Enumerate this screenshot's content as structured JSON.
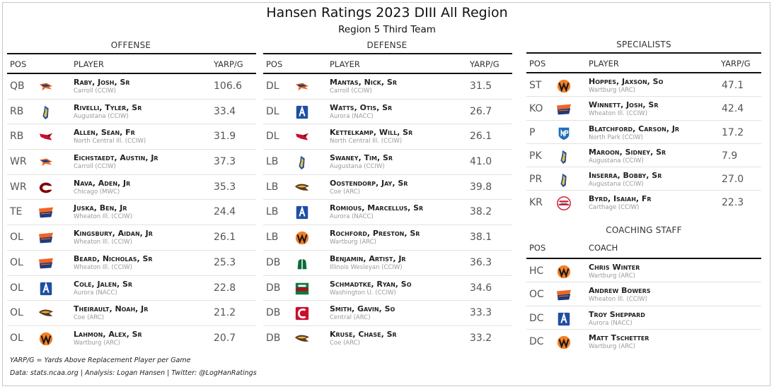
{
  "title": "Hansen Ratings 2023 DIII All Region",
  "subtitle": "Region 5 Third Team",
  "offense": {
    "title": "OFFENSE",
    "headers": {
      "pos": "POS",
      "player": "PLAYER",
      "stat": "YARP/G"
    },
    "rows": [
      {
        "pos": "QB",
        "player": "Raby, Josh, Sr",
        "team": "Carroll (CCIW)",
        "value": "106.6",
        "logo": "carroll-pioneers-logo"
      },
      {
        "pos": "RB",
        "player": "Rivelli, Tyler, Sr",
        "team": "Augustana (CCIW)",
        "value": "33.4",
        "logo": "augustana-vikings-logo"
      },
      {
        "pos": "RB",
        "player": "Allen, Sean, Fr",
        "team": "North Central Ill. (CCIW)",
        "value": "31.9",
        "logo": "north-central-cardinals-logo"
      },
      {
        "pos": "WR",
        "player": "Eichstaedt, Austin, Jr",
        "team": "Carroll (CCIW)",
        "value": "37.3",
        "logo": "carroll-pioneers-logo"
      },
      {
        "pos": "WR",
        "player": "Nava, Aden, Jr",
        "team": "Chicago (MWC)",
        "value": "35.3",
        "logo": "chicago-maroons-logo"
      },
      {
        "pos": "TE",
        "player": "Juska, Ben, Jr",
        "team": "Wheaton Ill. (CCIW)",
        "value": "24.4",
        "logo": "wheaton-thunder-logo"
      },
      {
        "pos": "OL",
        "player": "Kingsbury, Aidan, Jr",
        "team": "Wheaton Ill. (CCIW)",
        "value": "26.1",
        "logo": "wheaton-thunder-logo"
      },
      {
        "pos": "OL",
        "player": "Beard, Nicholas, Sr",
        "team": "Wheaton Ill. (CCIW)",
        "value": "25.3",
        "logo": "wheaton-thunder-logo"
      },
      {
        "pos": "OL",
        "player": "Cole, Jalen, Sr",
        "team": "Aurora (NACC)",
        "value": "22.8",
        "logo": "aurora-spartans-logo"
      },
      {
        "pos": "OL",
        "player": "Theirault, Noah, Jr",
        "team": "Coe (ARC)",
        "value": "21.2",
        "logo": "coe-kohawks-logo"
      },
      {
        "pos": "OL",
        "player": "Lahmon, Alex, Sr",
        "team": "Wartburg (ARC)",
        "value": "20.7",
        "logo": "wartburg-knights-logo"
      }
    ]
  },
  "defense": {
    "title": "DEFENSE",
    "headers": {
      "pos": "POS",
      "player": "PLAYER",
      "stat": "YARP/G"
    },
    "rows": [
      {
        "pos": "DL",
        "player": "Mantas, Nick, Sr",
        "team": "Carroll (CCIW)",
        "value": "31.5",
        "logo": "carroll-pioneers-logo"
      },
      {
        "pos": "DL",
        "player": "Watts, Otis, Sr",
        "team": "Aurora (NACC)",
        "value": "26.7",
        "logo": "aurora-spartans-logo"
      },
      {
        "pos": "DL",
        "player": "Kettelkamp, Will, Sr",
        "team": "North Central Ill. (CCIW)",
        "value": "26.1",
        "logo": "north-central-cardinals-logo"
      },
      {
        "pos": "LB",
        "player": "Swaney, Tim, Sr",
        "team": "Augustana (CCIW)",
        "value": "41.0",
        "logo": "augustana-vikings-logo"
      },
      {
        "pos": "LB",
        "player": "Oostendorp, Jay, Sr",
        "team": "Coe (ARC)",
        "value": "39.8",
        "logo": "coe-kohawks-logo"
      },
      {
        "pos": "LB",
        "player": "Romious, Marcellus, Sr",
        "team": "Aurora (NACC)",
        "value": "38.2",
        "logo": "aurora-spartans-logo"
      },
      {
        "pos": "LB",
        "player": "Rochford, Preston, Sr",
        "team": "Wartburg (ARC)",
        "value": "38.1",
        "logo": "wartburg-knights-logo"
      },
      {
        "pos": "DB",
        "player": "Benjamin, Artist, Jr",
        "team": "Illinois Wesleyan (CCIW)",
        "value": "36.3",
        "logo": "illinois-wesleyan-titans-logo"
      },
      {
        "pos": "DB",
        "player": "Schmadtke, Ryan, So",
        "team": "Washington U. (CCIW)",
        "value": "34.6",
        "logo": "washu-bears-logo"
      },
      {
        "pos": "DB",
        "player": "Smith, Gavin, So",
        "team": "Central (ARC)",
        "value": "33.3",
        "logo": "central-dutch-logo"
      },
      {
        "pos": "DB",
        "player": "Kruse, Chase, Sr",
        "team": "Coe (ARC)",
        "value": "33.2",
        "logo": "coe-kohawks-logo"
      }
    ]
  },
  "specialists": {
    "title": "SPECIALISTS",
    "headers": {
      "pos": "POS",
      "player": "PLAYER",
      "stat": "YARP/G"
    },
    "rows": [
      {
        "pos": "ST",
        "player": "Hoppes, Jaxson, So",
        "team": "Wartburg (ARC)",
        "value": "47.1",
        "logo": "wartburg-knights-logo"
      },
      {
        "pos": "KO",
        "player": "Winnett, Josh, Sr",
        "team": "Wheaton Ill. (CCIW)",
        "value": "42.4",
        "logo": "wheaton-thunder-logo"
      },
      {
        "pos": "P",
        "player": "Blatchford, Carson, Jr",
        "team": "North Park (CCIW)",
        "value": "17.2",
        "logo": "north-park-vikings-logo"
      },
      {
        "pos": "PK",
        "player": "Maroon, Sidney, Sr",
        "team": "Augustana (CCIW)",
        "value": "7.9",
        "logo": "augustana-vikings-logo"
      },
      {
        "pos": "PR",
        "player": "Inserra, Bobby, Sr",
        "team": "Augustana (CCIW)",
        "value": "27.0",
        "logo": "augustana-vikings-logo"
      },
      {
        "pos": "KR",
        "player": "Byrd, Isaiah, Fr",
        "team": "Carthage (CCIW)",
        "value": "22.3",
        "logo": "carthage-firebirds-logo"
      }
    ]
  },
  "coaching": {
    "title": "COACHING STAFF",
    "headers": {
      "pos": "POS",
      "coach": "COACH"
    },
    "rows": [
      {
        "pos": "HC",
        "player": "Chris Winter",
        "team": "Wartburg (ARC)",
        "logo": "wartburg-knights-logo"
      },
      {
        "pos": "OC",
        "player": "Andrew Bowers",
        "team": "Wheaton Ill. (CCIW)",
        "logo": "wheaton-thunder-logo"
      },
      {
        "pos": "DC",
        "player": "Troy Sheppard",
        "team": "Aurora (NACC)",
        "logo": "aurora-spartans-logo"
      },
      {
        "pos": "DC",
        "player": "Matt Tschetter",
        "team": "Wartburg (ARC)",
        "logo": "wartburg-knights-logo"
      }
    ]
  },
  "footnotes": {
    "definition": "YARP/G = Yards Above Replacement Player per Game",
    "credits": "Data: stats.ncaa.org | Analysis: Logan Hansen | Twitter: @LogHanRatings"
  }
}
